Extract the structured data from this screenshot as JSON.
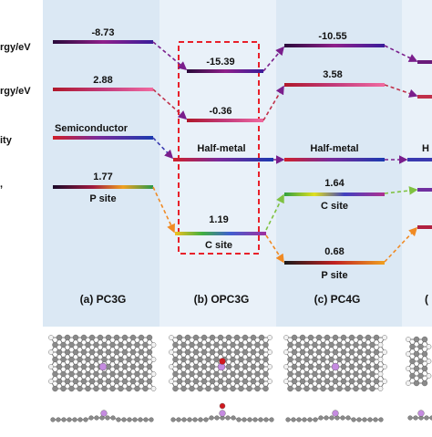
{
  "row_labels": [
    "rgy/eV",
    "rgy/eV",
    "ity",
    ","
  ],
  "columns": [
    {
      "label": "(a)  PC3G"
    },
    {
      "label": "(b)  OPC3G"
    },
    {
      "label": "(c)  PC4G"
    },
    {
      "label": "("
    }
  ],
  "levels": {
    "a": {
      "energy1": "-8.73",
      "energy2": "2.88",
      "conductivity": "Semiconductor",
      "barrier": "1.77",
      "site": "P site"
    },
    "b": {
      "energy1": "-15.39",
      "energy2": "-0.36",
      "conductivity": "Half-metal",
      "barrier": "1.19",
      "site": "C site"
    },
    "c": {
      "energy1": "-10.55",
      "energy2": "3.58",
      "conductivity": "Half-metal",
      "barrier_upper": "1.64",
      "site_upper": "C site",
      "barrier_lower": "0.68",
      "site_lower": "P site"
    },
    "d": {
      "conductivity": "H"
    }
  },
  "colors": {
    "panel_a": "#dbe8f4",
    "panel_b": "#e9f1f9",
    "panel_c": "#dbe8f4",
    "panel_d": "#e9f1f9",
    "highlight_box": "#e8202a",
    "arrow_purple": "#7a1e8c",
    "arrow_orange": "#f08a24",
    "arrow_green": "#7fc241",
    "atom_c": "#8a8a8a",
    "atom_h": "#f2f2f2",
    "atom_p": "#c58be0",
    "atom_o": "#d0191f"
  }
}
